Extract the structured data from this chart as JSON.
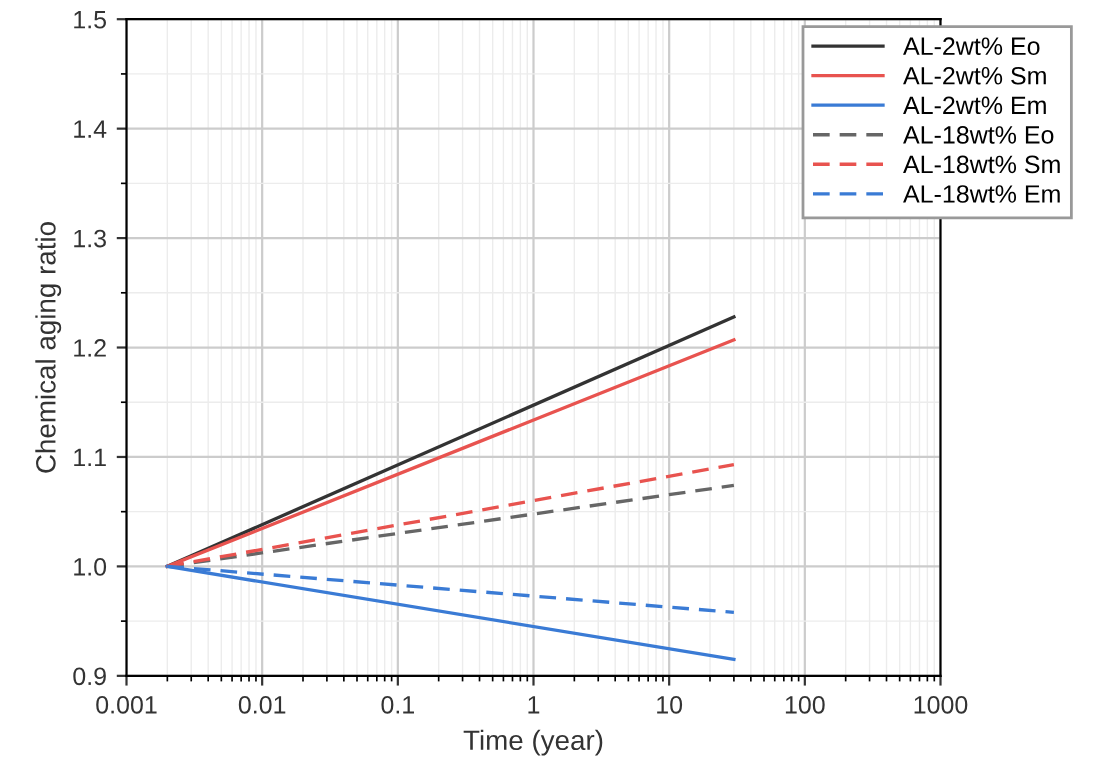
{
  "chart_data": {
    "type": "line",
    "xlabel": "Time (year)",
    "ylabel": "Chemical aging ratio",
    "log": "x",
    "xlim": [
      0.001,
      1000
    ],
    "xticks": [
      0.001,
      0.01,
      0.1,
      1,
      10,
      100,
      1000
    ],
    "ylim": [
      0.9,
      1.5
    ],
    "yticks": [
      {
        "value": 0.9,
        "label": "0.9"
      },
      {
        "value": 1.0,
        "label": "1.0"
      },
      1.1,
      1.2,
      1.3,
      1.4,
      1.5
    ],
    "grid": true,
    "legend": "top right",
    "x": [
      0.002,
      30
    ],
    "series": [
      {
        "name": "AL-2wt% Eo",
        "color": "#333333",
        "line_style": "solid",
        "values": [
          1.0,
          1.228
        ]
      },
      {
        "name": "AL-2wt% Sm",
        "color": "#e8534f",
        "line_style": "solid",
        "values": [
          1.0,
          1.207
        ]
      },
      {
        "name": "AL-2wt% Em",
        "color": "#3a7bd5",
        "line_style": "solid",
        "values": [
          1.0,
          0.915
        ]
      },
      {
        "name": "AL-18wt% Eo",
        "color": "#666666",
        "line_style": "dashed",
        "values": [
          1.0,
          1.074
        ]
      },
      {
        "name": "AL-18wt% Sm",
        "color": "#e8534f",
        "line_style": "dashed",
        "values": [
          1.0,
          1.093
        ]
      },
      {
        "name": "AL-18wt% Em",
        "color": "#3a7bd5",
        "line_style": "dashed",
        "values": [
          1.0,
          0.958
        ]
      }
    ]
  }
}
